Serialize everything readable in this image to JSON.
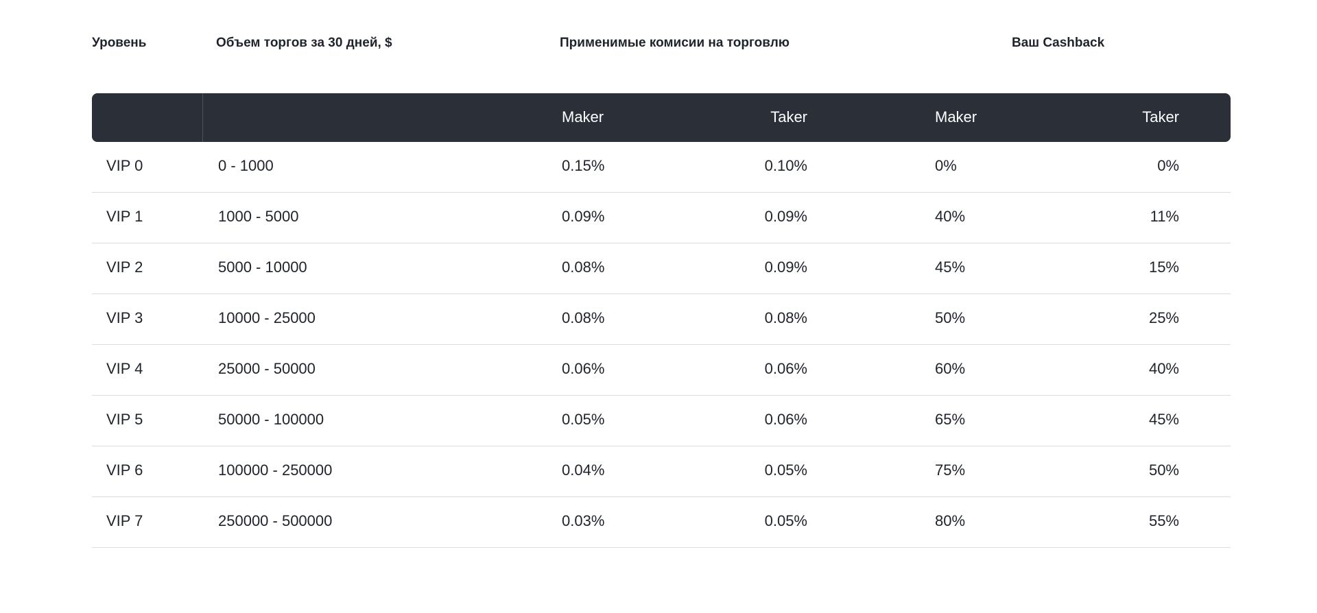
{
  "headers": {
    "level": "Уровень",
    "volume": "Объем торгов за 30 дней, $",
    "fees": "Применимые комисии на торговлю",
    "cashback": "Ваш Cashback"
  },
  "subheaders": {
    "fees_maker": "Maker",
    "fees_taker": "Taker",
    "cashback_maker": "Maker",
    "cashback_taker": "Taker"
  },
  "rows": [
    {
      "level": "VIP 0",
      "volume": "0 - 1000",
      "fee_maker": "0.15%",
      "fee_taker": "0.10%",
      "cb_maker": "0%",
      "cb_taker": "0%"
    },
    {
      "level": "VIP 1",
      "volume": "1000 - 5000",
      "fee_maker": "0.09%",
      "fee_taker": "0.09%",
      "cb_maker": "40%",
      "cb_taker": "11%"
    },
    {
      "level": "VIP 2",
      "volume": "5000 - 10000",
      "fee_maker": "0.08%",
      "fee_taker": "0.09%",
      "cb_maker": "45%",
      "cb_taker": "15%"
    },
    {
      "level": "VIP 3",
      "volume": "10000 - 25000",
      "fee_maker": "0.08%",
      "fee_taker": "0.08%",
      "cb_maker": "50%",
      "cb_taker": "25%"
    },
    {
      "level": "VIP 4",
      "volume": "25000 - 50000",
      "fee_maker": "0.06%",
      "fee_taker": "0.06%",
      "cb_maker": "60%",
      "cb_taker": "40%"
    },
    {
      "level": "VIP 5",
      "volume": "50000 - 100000",
      "fee_maker": "0.05%",
      "fee_taker": "0.06%",
      "cb_maker": "65%",
      "cb_taker": "45%"
    },
    {
      "level": "VIP 6",
      "volume": "100000 - 250000",
      "fee_maker": "0.04%",
      "fee_taker": "0.05%",
      "cb_maker": "75%",
      "cb_taker": "50%"
    },
    {
      "level": "VIP 7",
      "volume": "250000 - 500000",
      "fee_maker": "0.03%",
      "fee_taker": "0.05%",
      "cb_maker": "80%",
      "cb_taker": "55%"
    }
  ]
}
